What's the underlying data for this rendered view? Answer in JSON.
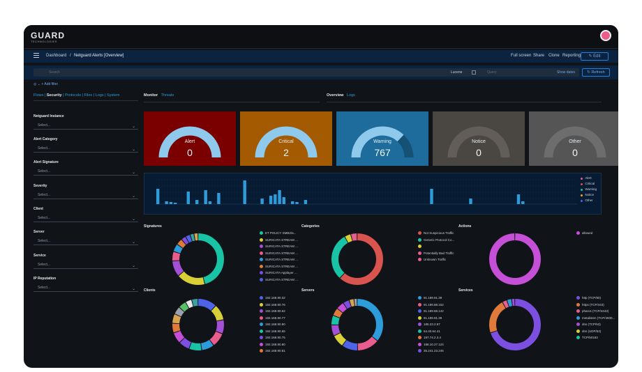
{
  "brand": {
    "name": "GUARD",
    "tagline": "TECHNOLOGIES"
  },
  "topnav": {
    "breadcrumb": [
      "Dashboard",
      "Netguard Alerts [Overview]"
    ],
    "actions": [
      "Full screen",
      "Share",
      "Clone",
      "Reporting"
    ],
    "edit_label": "Edit"
  },
  "querybar": {
    "search_placeholder": "Search",
    "language": "Lucene",
    "date_placeholder": "Query",
    "show_dates": "Show dates",
    "refresh": "Refresh"
  },
  "filter": {
    "add_filter": "+ Add filter"
  },
  "left_panel": {
    "nav": [
      "Flows",
      "Security",
      "Protocols",
      "Files",
      "Logs",
      "System"
    ],
    "active_nav": "Security",
    "fields": [
      {
        "label": "Netguard Instance",
        "value": "Select..."
      },
      {
        "label": "Alert Category",
        "value": "Select..."
      },
      {
        "label": "Alert Signature",
        "value": "Select..."
      },
      {
        "label": "Severity",
        "value": "Select..."
      },
      {
        "label": "Client",
        "value": "Select..."
      },
      {
        "label": "Server",
        "value": "Select..."
      },
      {
        "label": "Service",
        "value": "Select..."
      },
      {
        "label": "IP Reputation",
        "value": "Select..."
      }
    ]
  },
  "tabs_monitor": {
    "active": "Monitor",
    "other": "Threats"
  },
  "tabs_overview": {
    "active": "Overview",
    "other": "Logs"
  },
  "gauges": [
    {
      "label": "Alert",
      "value": "0",
      "bg": "#7a0000",
      "arc": "#8fc9ec",
      "fill": 1.0
    },
    {
      "label": "Critical",
      "value": "2",
      "bg": "#a35a00",
      "arc": "#8fc9ec",
      "fill": 1.0
    },
    {
      "label": "Warning",
      "value": "767",
      "bg": "#1d6c9b",
      "arc": "#8fc9ec",
      "fill": 0.74
    },
    {
      "label": "Notice",
      "value": "0",
      "bg": "#4a4642",
      "arc": "#625d58",
      "fill": 1.0
    },
    {
      "label": "Other",
      "value": "0",
      "bg": "#555555",
      "arc": "#6d6d6d",
      "fill": 1.0
    }
  ],
  "histogram": {
    "legend": [
      {
        "name": "Alert",
        "color": "#e85d8c"
      },
      {
        "name": "Critical",
        "color": "#d9534f"
      },
      {
        "name": "Warning",
        "color": "#19c3a6"
      },
      {
        "name": "Notice",
        "color": "#f0a830"
      },
      {
        "name": "Other",
        "color": "#4f63e8"
      }
    ]
  },
  "donut_panels": [
    {
      "title": "Signatures",
      "legend": [
        {
          "name": "ET POLICY SMB2/a...",
          "color": "#19c3a6"
        },
        {
          "name": "SURICATA STREAM ...",
          "color": "#d8d036"
        },
        {
          "name": "SURICATA STREAM ...",
          "color": "#a34fd6"
        },
        {
          "name": "SURICATA STREAM ...",
          "color": "#e85d8c"
        },
        {
          "name": "SURICATA STREAM ...",
          "color": "#2d9cdb"
        },
        {
          "name": "SURICATA STREAM ...",
          "color": "#e07a3a"
        },
        {
          "name": "SURICATA Applayer ...",
          "color": "#7d4fe0"
        },
        {
          "name": "SURICATA STREAM ...",
          "color": "#4f63e8"
        }
      ]
    },
    {
      "title": "Categories",
      "legend": [
        {
          "name": "Not Suspicious Traffic",
          "color": "#d9534f"
        },
        {
          "name": "Generic Protocol Co...",
          "color": "#19c3a6"
        },
        {
          "name": "",
          "color": "#d8d036"
        },
        {
          "name": "Potentially Bad Traffic",
          "color": "#e85d8c"
        },
        {
          "name": "Unknown Traffic",
          "color": "#e85d8c"
        }
      ]
    },
    {
      "title": "Actions",
      "legend": [
        {
          "name": "allowed",
          "color": "#c54fd6"
        }
      ]
    },
    {
      "title": "Clients",
      "legend": [
        {
          "name": "192.168.90.32",
          "color": "#4f63e8"
        },
        {
          "name": "192.168.90.76",
          "color": "#d8d036"
        },
        {
          "name": "192.168.90.62",
          "color": "#a34fd6"
        },
        {
          "name": "192.168.90.77",
          "color": "#e85d8c"
        },
        {
          "name": "192.168.90.90",
          "color": "#2d9cdb"
        },
        {
          "name": "192.168.90.65",
          "color": "#19c3a6"
        },
        {
          "name": "192.168.90.75",
          "color": "#7d4fe0"
        },
        {
          "name": "192.168.90.80",
          "color": "#c54fd6"
        },
        {
          "name": "192.168.90.81",
          "color": "#e07a3a"
        }
      ]
    },
    {
      "title": "Servers",
      "legend": [
        {
          "name": "91.189.91.39",
          "color": "#2d9cdb"
        },
        {
          "name": "91.189.88.152",
          "color": "#e85d8c"
        },
        {
          "name": "91.189.88.142",
          "color": "#4f63e8"
        },
        {
          "name": "91.189.91.38",
          "color": "#d8d036"
        },
        {
          "name": "185.23.2.87",
          "color": "#a34fd6"
        },
        {
          "name": "64.40.64.41",
          "color": "#19c3a6"
        },
        {
          "name": "187.74.2.3.4",
          "color": "#e07a3a"
        },
        {
          "name": "188.10.27.124",
          "color": "#c54fd6"
        },
        {
          "name": "35.241.23.245",
          "color": "#7d4fe0"
        }
      ]
    },
    {
      "title": "Services",
      "legend": [
        {
          "name": "http (TCP/80)",
          "color": "#7d4fe0"
        },
        {
          "name": "https (TCP/443)",
          "color": "#e07a3a"
        },
        {
          "name": "pharos (TCP/4443)",
          "color": "#e85d8c"
        },
        {
          "name": "metalisten (TCP/4930...",
          "color": "#2d9cdb"
        },
        {
          "name": "dns (TCP/53)",
          "color": "#a34fd6"
        },
        {
          "name": "dns (UDP/53)",
          "color": "#d8d036"
        },
        {
          "name": "TCP/50183",
          "color": "#19c3a6"
        }
      ]
    }
  ],
  "colors": {
    "nav_blue": "#0c2340",
    "link": "#2d9cdb",
    "panel_bg": "#101317"
  }
}
